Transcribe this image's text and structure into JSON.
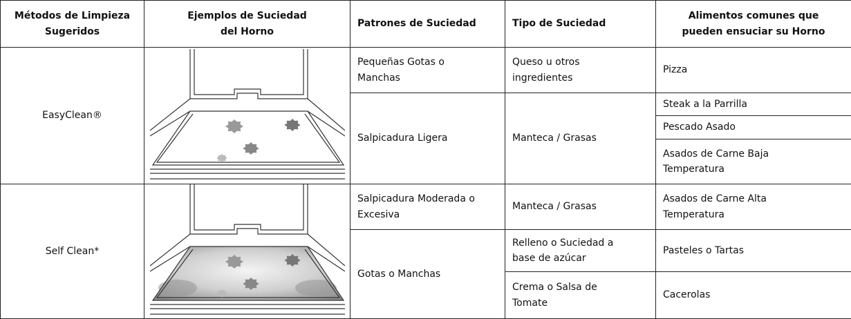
{
  "header": [
    "Métodos de Limpieza Sugeridos",
    "Ejemplos de Suciedad del Horno",
    "Patrones de Suciedad",
    "Tipo de Suciedad",
    "Alimentos comunes que pueden ensuciar su Horno"
  ],
  "groups": [
    {
      "method": "EasyClean®",
      "patterns": [
        {
          "pattern": "Pequeñas Gotas o Manchas",
          "types": [
            {
              "type": "Queso u otros ingredientes",
              "foods": [
                "Pizza"
              ]
            }
          ]
        },
        {
          "pattern": "Salpicadura Ligera",
          "types": [
            {
              "type": "Manteca / Grasas",
              "foods": [
                "Steak a la Parrilla",
                "Pescado Asado",
                "Asados de Carne Baja Temperatura"
              ]
            }
          ]
        }
      ]
    },
    {
      "method": "Self Clean*",
      "patterns": [
        {
          "pattern": "Salpicadura Moderada o Excesiva",
          "types": [
            {
              "type": "Manteca / Grasas",
              "foods": [
                "Asados de Carne Alta Temperatura"
              ]
            }
          ]
        },
        {
          "pattern": "Gotas o Manchas",
          "types": [
            {
              "type": "Relleno o Suciedad a base de azúcar",
              "foods": [
                "Pasteles o Tartas"
              ]
            },
            {
              "type": "Crema o Salsa de Tomate",
              "foods": [
                "Cacerolas"
              ]
            }
          ]
        }
      ]
    }
  ]
}
